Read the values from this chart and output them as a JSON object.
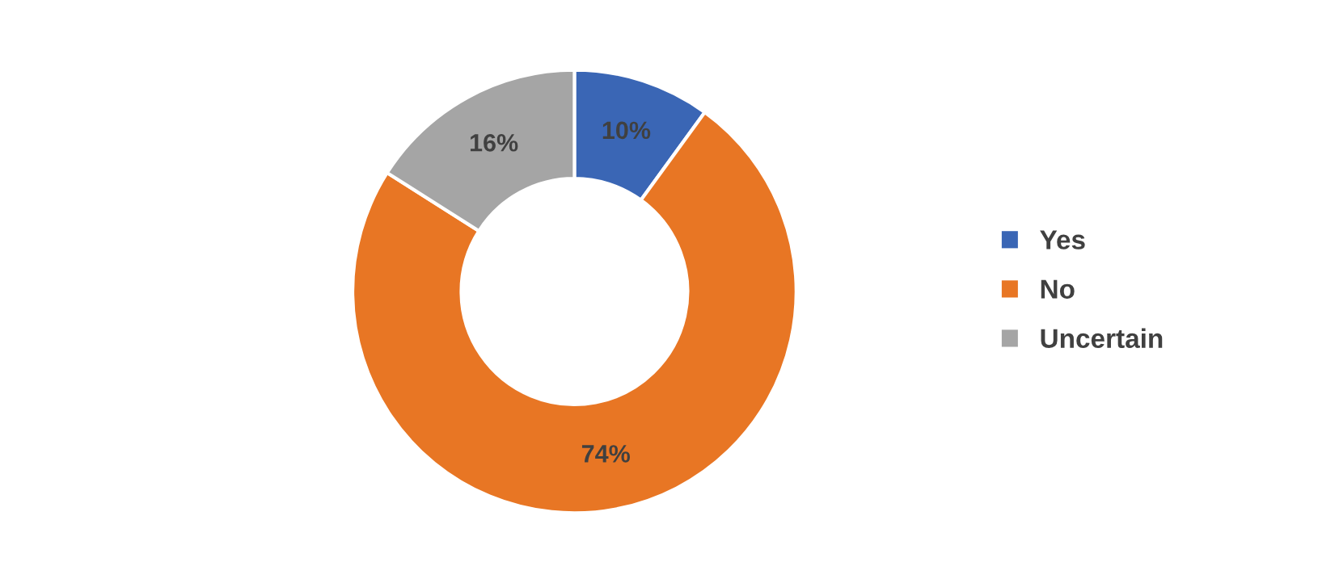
{
  "chart_data": {
    "type": "donut",
    "categories": [
      "Yes",
      "No",
      "Uncertain"
    ],
    "values": [
      10,
      74,
      16
    ],
    "value_labels": [
      "10%",
      "74%",
      "16%"
    ],
    "colors": [
      "#3a66b5",
      "#e87624",
      "#a5a5a5"
    ],
    "legend": "right"
  }
}
